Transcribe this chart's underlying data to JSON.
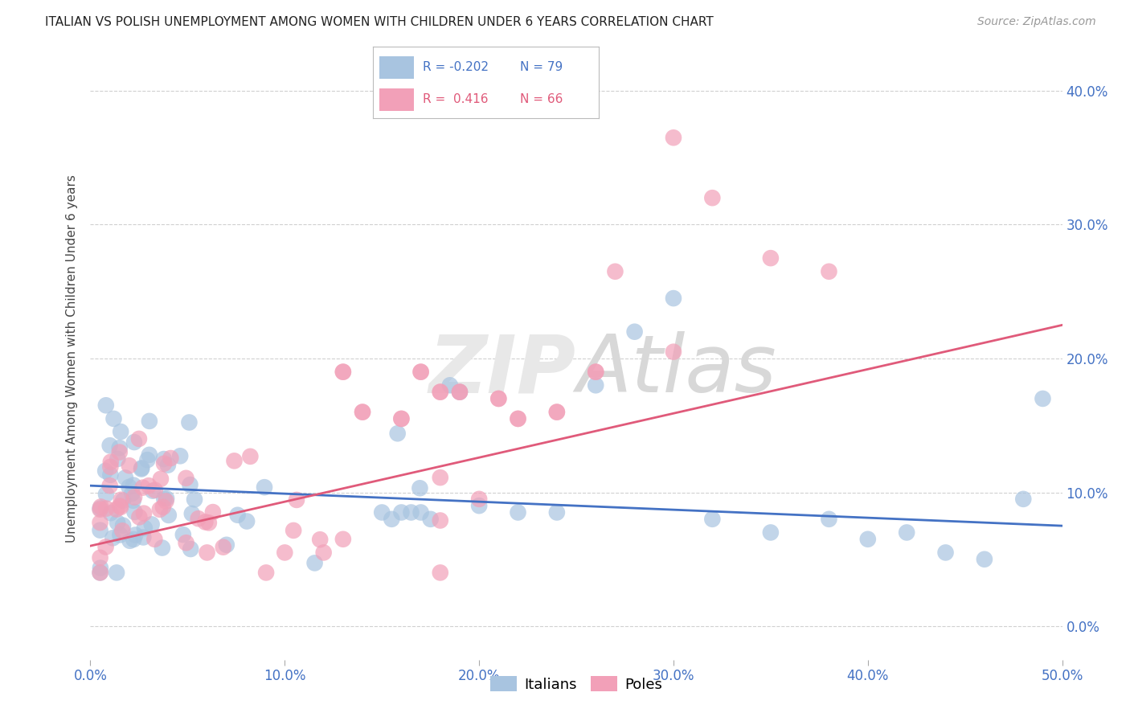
{
  "title": "ITALIAN VS POLISH UNEMPLOYMENT AMONG WOMEN WITH CHILDREN UNDER 6 YEARS CORRELATION CHART",
  "source": "Source: ZipAtlas.com",
  "ylabel": "Unemployment Among Women with Children Under 6 years",
  "xlim": [
    0.0,
    0.5
  ],
  "ylim": [
    -0.025,
    0.425
  ],
  "xtick_vals": [
    0.0,
    0.1,
    0.2,
    0.3,
    0.4,
    0.5
  ],
  "xtick_labels": [
    "0.0%",
    "10.0%",
    "20.0%",
    "30.0%",
    "40.0%",
    "50.0%"
  ],
  "ytick_vals": [
    0.0,
    0.1,
    0.2,
    0.3,
    0.4
  ],
  "ytick_labels": [
    "0.0%",
    "10.0%",
    "20.0%",
    "30.0%",
    "40.0%"
  ],
  "italian_color": "#a8c4e0",
  "polish_color": "#f2a0b8",
  "italian_line_color": "#4472c4",
  "polish_line_color": "#e05a7a",
  "tick_color": "#4472c4",
  "italian_R": -0.202,
  "italian_N": 79,
  "polish_R": 0.416,
  "polish_N": 66,
  "legend_label_italian": "Italians",
  "legend_label_polish": "Poles",
  "watermark": "ZIPAtlas",
  "grid_color": "#d0d0d0",
  "it_line_x0": 0.0,
  "it_line_y0": 0.105,
  "it_line_x1": 0.5,
  "it_line_y1": 0.075,
  "po_line_x0": 0.0,
  "po_line_y0": 0.06,
  "po_line_x1": 0.5,
  "po_line_y1": 0.225
}
